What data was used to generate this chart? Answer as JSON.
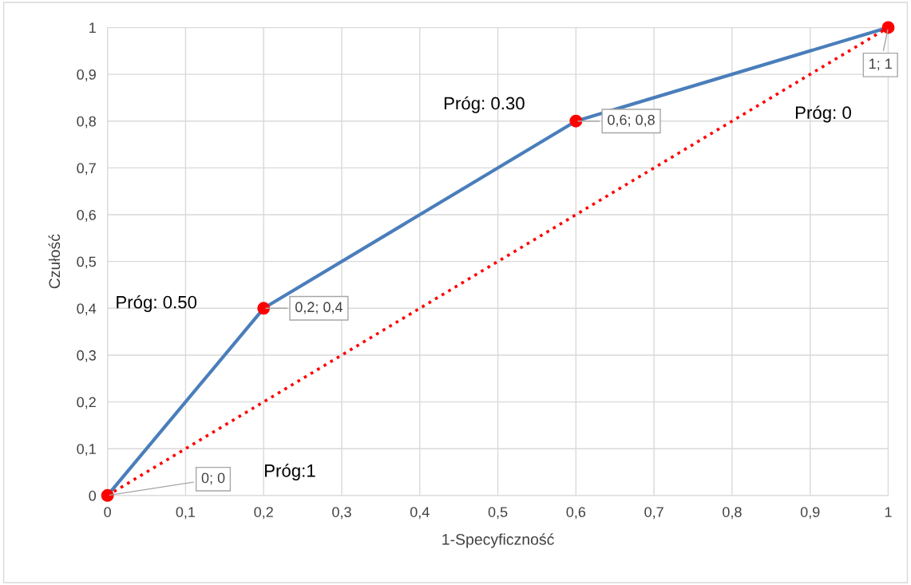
{
  "chart_data": {
    "type": "line",
    "xlabel": "1-Specyficzność",
    "ylabel": "Czułość",
    "xlim": [
      0,
      1
    ],
    "ylim": [
      0,
      1
    ],
    "xticks": [
      0,
      {
        "value": 0.1,
        "label": "0,1"
      },
      {
        "value": 0.2,
        "label": "0,2"
      },
      {
        "value": 0.3,
        "label": "0,3"
      },
      {
        "value": 0.4,
        "label": "0,4"
      },
      {
        "value": 0.5,
        "label": "0,5"
      },
      {
        "value": 0.6,
        "label": "0,6"
      },
      {
        "value": 0.7,
        "label": "0,7"
      },
      {
        "value": 0.8,
        "label": "0,8"
      },
      {
        "value": 0.9,
        "label": "0,9"
      },
      1
    ],
    "yticks": [
      0,
      {
        "value": 0.1,
        "label": "0,1"
      },
      {
        "value": 0.2,
        "label": "0,2"
      },
      {
        "value": 0.3,
        "label": "0,3"
      },
      {
        "value": 0.4,
        "label": "0,4"
      },
      {
        "value": 0.5,
        "label": "0,5"
      },
      {
        "value": 0.6,
        "label": "0,6"
      },
      {
        "value": 0.7,
        "label": "0,7"
      },
      {
        "value": 0.8,
        "label": "0,8"
      },
      {
        "value": 0.9,
        "label": "0,9"
      },
      1
    ],
    "grid": true,
    "series": [
      {
        "color": "#4a7ebb",
        "x": [
          0,
          0.2,
          0.6,
          1
        ],
        "values": [
          0,
          0.4,
          0.8,
          1
        ],
        "line_style": "solid"
      },
      {
        "color": "#ff0000",
        "x": [
          0,
          1
        ],
        "values": [
          0,
          1
        ],
        "line_style": "dotted"
      },
      {
        "type": "scatter",
        "color": "#ff0000",
        "x": [
          0,
          0.2,
          0.6,
          1
        ],
        "values": [
          0,
          0.4,
          0.8,
          1
        ],
        "marker": "circle",
        "value_labels": [
          "0; 0",
          "0,2; 0,4",
          "0,6; 0,8",
          "1; 1"
        ]
      }
    ],
    "annotations": [
      "Próg:1",
      "Próg: 0.50",
      "Próg: 0.30",
      "Próg: 0"
    ]
  }
}
